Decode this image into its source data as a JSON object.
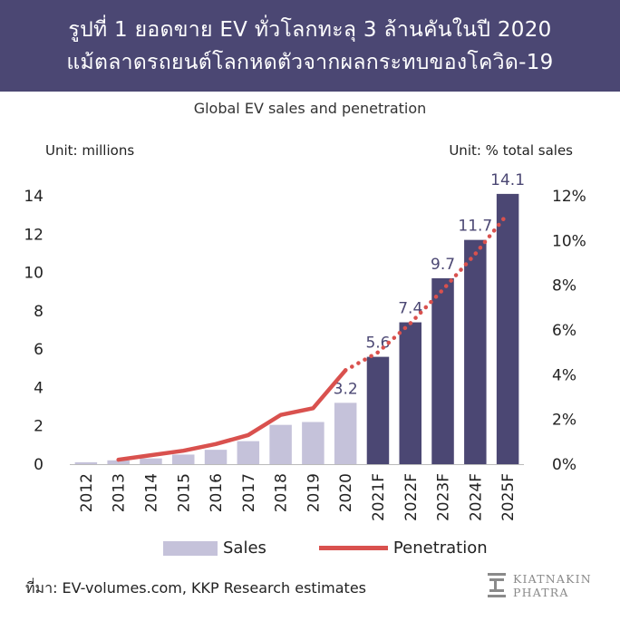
{
  "header": {
    "title_line1": "รูปที่ 1 ยอดขาย EV ทั่วโลกทะลุ 3 ล้านคันในปี 2020",
    "title_line2": "แม้ตลาดรถยนต์โลกหดตัวจากผลกระทบของโควิด-19"
  },
  "units": {
    "left": "Unit: millions",
    "right": "Unit: % total sales"
  },
  "legend": {
    "sales_label": "Sales",
    "penetration_label": "Penetration"
  },
  "source": "ที่มา: EV-volumes.com, KKP Research estimates",
  "logo": {
    "line1": "KIATNAKIN",
    "line2": "PHATRA"
  },
  "colors": {
    "header_bg": "#4b4773",
    "historical_bar": "#c5c2da",
    "forecast_bar": "#4b4773",
    "penetration_line": "#d9514e"
  },
  "chart_data": {
    "type": "bar",
    "title": "Global EV sales and penetration",
    "categories": [
      "2012",
      "2013",
      "2014",
      "2015",
      "2016",
      "2017",
      "2018",
      "2019",
      "2020",
      "2021F",
      "2022F",
      "2023F",
      "2024F",
      "2025F"
    ],
    "series": [
      {
        "name": "Sales",
        "axis": "left",
        "values": [
          0.1,
          0.2,
          0.3,
          0.5,
          0.75,
          1.2,
          2.05,
          2.2,
          3.2,
          5.6,
          7.4,
          9.7,
          11.7,
          14.1
        ],
        "data_labels": [
          "",
          "",
          "",
          "",
          "",
          "",
          "",
          "",
          "3.2",
          "5.6",
          "7.4",
          "9.7",
          "11.7",
          "14.1"
        ],
        "forecast_from": "2021F"
      },
      {
        "name": "Penetration",
        "type": "line",
        "axis": "right",
        "values": [
          null,
          0.2,
          0.4,
          0.6,
          0.9,
          1.3,
          2.2,
          2.5,
          4.2,
          5.0,
          6.3,
          7.8,
          9.4,
          11.2
        ],
        "forecast_from": "2021F"
      }
    ],
    "y_left": {
      "label": "Unit: millions",
      "range": [
        0,
        14
      ],
      "ticks": [
        0,
        2,
        4,
        6,
        8,
        10,
        12,
        14
      ],
      "tick_labels": [
        "0",
        "2",
        "4",
        "6",
        "8",
        "10",
        "12",
        "14"
      ]
    },
    "y_right": {
      "label": "Unit: % total sales",
      "range": [
        0,
        12
      ],
      "ticks": [
        0,
        2,
        4,
        6,
        8,
        10,
        12
      ],
      "tick_labels": [
        "0%",
        "2%",
        "4%",
        "6%",
        "8%",
        "10%",
        "12%"
      ]
    },
    "legend_position": "bottom",
    "grid": false
  }
}
